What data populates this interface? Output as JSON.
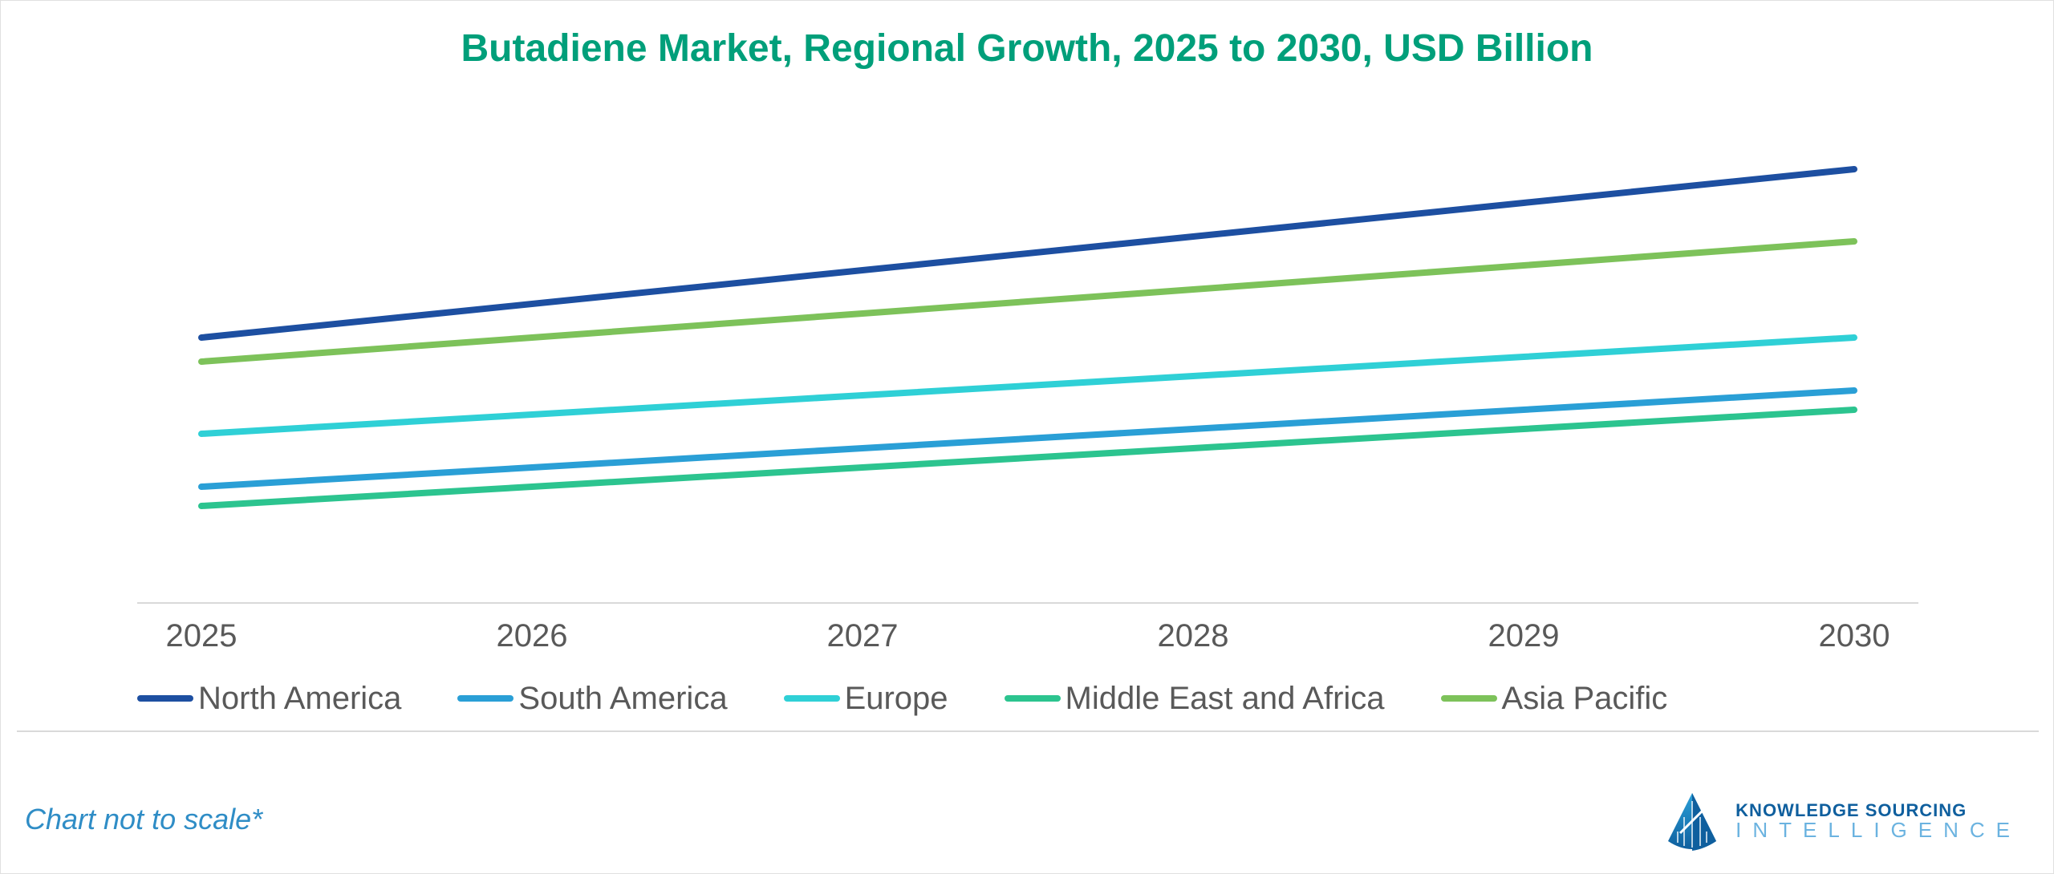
{
  "chart": {
    "type": "line",
    "title": "Butadiene Market, Regional Growth, 2025 to 2030, USD Billion",
    "title_color": "#009f7a",
    "title_fontsize": 48,
    "title_fontweight": 700,
    "background_color": "#ffffff",
    "frame_border_color": "#e0e0e0",
    "grid_color": "#d9d9d9",
    "axis_label_color": "#595959",
    "axis_label_fontsize": 40,
    "x_categories": [
      "2025",
      "2026",
      "2027",
      "2028",
      "2029",
      "2030"
    ],
    "ylim": [
      0,
      100
    ],
    "line_width": 8,
    "series": [
      {
        "name": "North America",
        "color": "#1d4fa1",
        "values": [
          55,
          62,
          69,
          76,
          83,
          90
        ]
      },
      {
        "name": "South America",
        "color": "#2a9fd6",
        "values": [
          24,
          28,
          32,
          36,
          40,
          44
        ]
      },
      {
        "name": "Europe",
        "color": "#2fd0d6",
        "values": [
          35,
          39,
          43,
          47,
          51,
          55
        ]
      },
      {
        "name": "Middle East and Africa",
        "color": "#2cc48f",
        "values": [
          20,
          24,
          28,
          32,
          36,
          40
        ]
      },
      {
        "name": "Asia Pacific",
        "color": "#7dc25a",
        "values": [
          50,
          55,
          60,
          65,
          70,
          75
        ]
      }
    ],
    "legend": {
      "position": "bottom",
      "swatch_width": 70,
      "swatch_height": 8,
      "label_fontsize": 40,
      "label_color": "#595959"
    }
  },
  "footnote": {
    "text": "Chart not to scale*",
    "color": "#2f8dc6",
    "fontsize": 36,
    "font_style": "italic"
  },
  "brand": {
    "line1": "KNOWLEDGE SOURCING",
    "line2": "INTELLIGENCE",
    "color_primary": "#0f5f9e",
    "color_secondary": "#6bb3e0"
  }
}
